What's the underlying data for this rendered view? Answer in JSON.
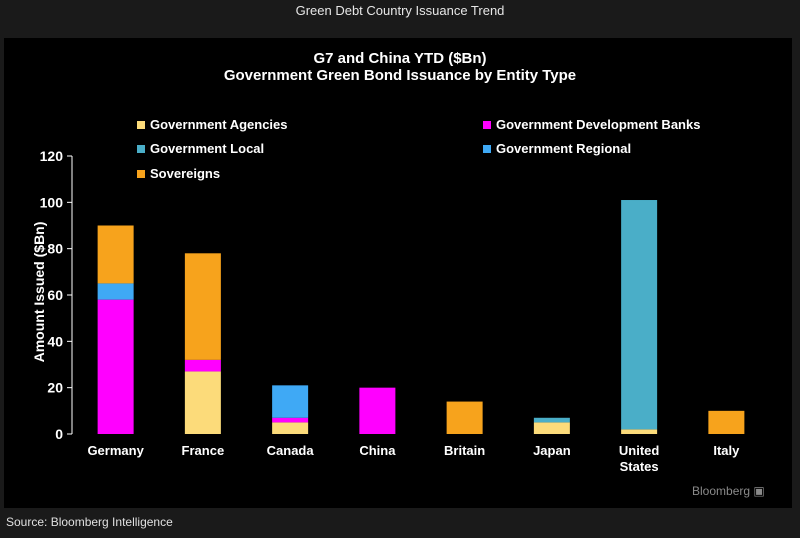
{
  "window": {
    "title": "Green Debt Country Issuance Trend"
  },
  "footer": {
    "source": "Source: Bloomberg Intelligence",
    "logo": "Bloomberg"
  },
  "chart_data": {
    "type": "bar",
    "stacked": true,
    "title": "G7 and China YTD ($Bn)",
    "subtitle": "Government Green Bond Issuance by Entity Type",
    "ylabel": "Amount Issued ($Bn)",
    "xlabel": "",
    "ylim": [
      0,
      120
    ],
    "yticks": [
      0,
      20,
      40,
      60,
      80,
      100,
      120
    ],
    "grid": false,
    "legend_position": "top",
    "categories": [
      "Germany",
      "France",
      "Canada",
      "China",
      "Britain",
      "Japan",
      "United States",
      "Italy"
    ],
    "category_labels": [
      [
        "Germany"
      ],
      [
        "France"
      ],
      [
        "Canada"
      ],
      [
        "China"
      ],
      [
        "Britain"
      ],
      [
        "Japan"
      ],
      [
        "United",
        "States"
      ],
      [
        "Italy"
      ]
    ],
    "series": [
      {
        "name": "Government Agencies",
        "color": "#fcdb7a",
        "values": [
          0,
          27,
          5,
          0,
          0,
          5,
          2,
          0
        ]
      },
      {
        "name": "Government Development Banks",
        "color": "#ff00ff",
        "values": [
          58,
          5,
          2,
          20,
          0,
          0,
          0,
          0
        ]
      },
      {
        "name": "Government Local",
        "color": "#4aaec8",
        "values": [
          0,
          0,
          0,
          0,
          0,
          2,
          99,
          0
        ]
      },
      {
        "name": "Government Regional",
        "color": "#3fa9f5",
        "values": [
          7,
          0,
          14,
          0,
          0,
          0,
          0,
          0
        ]
      },
      {
        "name": "Sovereigns",
        "color": "#f7a31c",
        "values": [
          25,
          46,
          0,
          0,
          14,
          0,
          0,
          10
        ]
      }
    ]
  }
}
